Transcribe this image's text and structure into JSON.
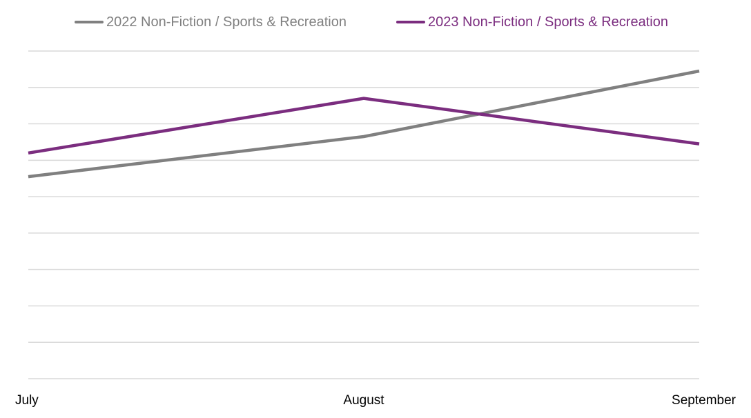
{
  "chart_data": {
    "type": "line",
    "categories": [
      "July",
      "August",
      "September"
    ],
    "series": [
      {
        "name": "2022 Non-Fiction / Sports & Recreation",
        "color": "#808080",
        "values": [
          55.5,
          66.5,
          84.5
        ]
      },
      {
        "name": "2023 Non-Fiction / Sports & Recreation",
        "color": "#7b2d7f",
        "values": [
          62,
          77,
          64.5
        ]
      }
    ],
    "ylim": [
      0,
      90
    ],
    "gridlines": 10,
    "grid": true,
    "legend": "top-center",
    "ytick_labels_shown": false,
    "title": "",
    "xlabel": "",
    "ylabel": ""
  },
  "colors": {
    "grid": "#d9d9d9",
    "legend_text_2022": "#808080",
    "legend_text_2023": "#7b2d7f"
  }
}
